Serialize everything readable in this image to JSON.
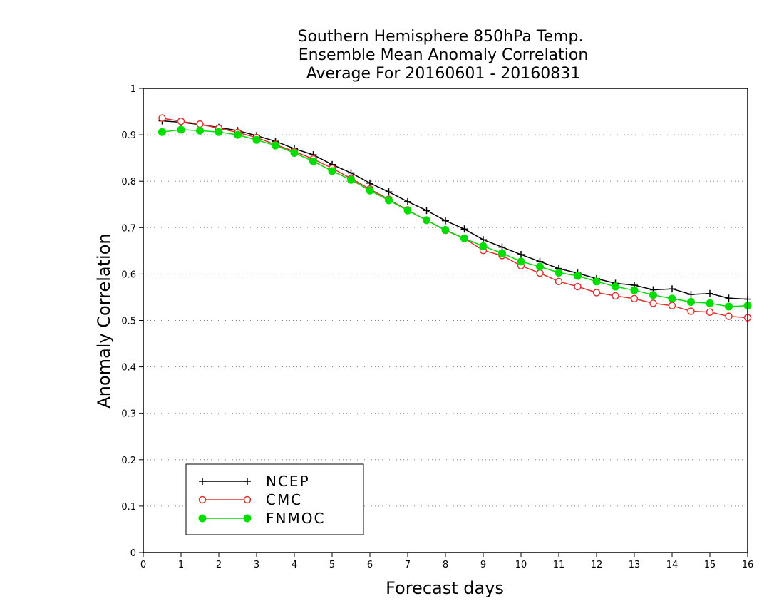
{
  "chart_data": {
    "type": "line",
    "title": [
      "Southern Hemisphere 850hPa Temp.",
      "Ensemble Mean Anomaly Correlation",
      "Average For 20160601 - 20160831"
    ],
    "xlabel": "Forecast days",
    "ylabel": "Anomaly Correlation",
    "xlim": [
      0,
      16
    ],
    "ylim": [
      0,
      1
    ],
    "x_ticks": [
      "0",
      "1",
      "2",
      "3",
      "4",
      "5",
      "6",
      "7",
      "8",
      "9",
      "10",
      "11",
      "12",
      "13",
      "14",
      "15",
      "16"
    ],
    "y_ticks": [
      "0",
      "0.1",
      "0.2",
      "0.3",
      "0.4",
      "0.5",
      "0.6",
      "0.7",
      "0.8",
      "0.9",
      "1"
    ],
    "grid": "horizontal-dotted",
    "legend_position": "bottom-left",
    "x": [
      0.5,
      1,
      1.5,
      2,
      2.5,
      3,
      3.5,
      4,
      4.5,
      5,
      5.5,
      6,
      6.5,
      7,
      7.5,
      8,
      8.5,
      9,
      9.5,
      10,
      10.5,
      11,
      11.5,
      12,
      12.5,
      13,
      13.5,
      14,
      14.5,
      15,
      15.5,
      16
    ],
    "series": [
      {
        "name": "NCEP",
        "color": "#000000",
        "marker": "plus",
        "values": [
          0.93,
          0.927,
          0.922,
          0.916,
          0.909,
          0.898,
          0.886,
          0.87,
          0.857,
          0.836,
          0.818,
          0.796,
          0.777,
          0.756,
          0.737,
          0.715,
          0.697,
          0.674,
          0.658,
          0.642,
          0.627,
          0.612,
          0.602,
          0.59,
          0.58,
          0.576,
          0.566,
          0.568,
          0.556,
          0.558,
          0.548,
          0.546
        ]
      },
      {
        "name": "CMC",
        "color": "#e03030",
        "marker": "open-circle",
        "values": [
          0.936,
          0.929,
          0.923,
          0.914,
          0.905,
          0.894,
          0.879,
          0.864,
          0.848,
          0.828,
          0.806,
          0.783,
          0.761,
          0.738,
          0.716,
          0.694,
          0.677,
          0.651,
          0.64,
          0.618,
          0.602,
          0.584,
          0.573,
          0.56,
          0.553,
          0.547,
          0.537,
          0.532,
          0.52,
          0.518,
          0.509,
          0.506
        ]
      },
      {
        "name": "FNMOC",
        "color": "#00dd00",
        "marker": "filled-circle",
        "values": [
          0.906,
          0.911,
          0.909,
          0.906,
          0.9,
          0.889,
          0.877,
          0.861,
          0.843,
          0.822,
          0.803,
          0.78,
          0.759,
          0.737,
          0.716,
          0.695,
          0.677,
          0.66,
          0.645,
          0.627,
          0.616,
          0.603,
          0.596,
          0.584,
          0.573,
          0.565,
          0.555,
          0.547,
          0.54,
          0.537,
          0.53,
          0.532
        ]
      }
    ]
  }
}
